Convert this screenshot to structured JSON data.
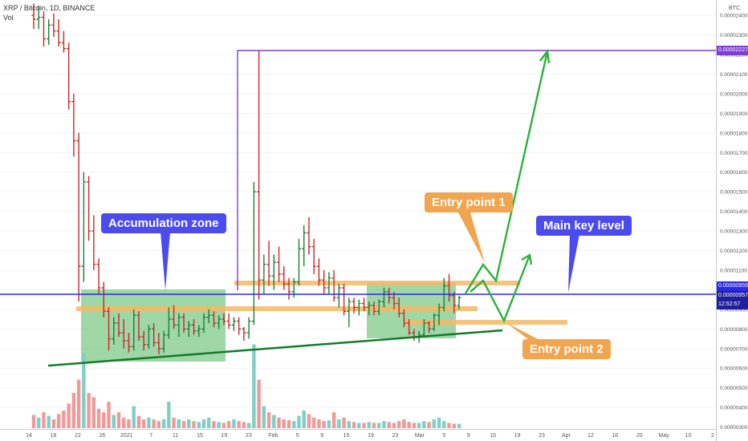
{
  "header": {
    "symbol": "XRP / Bitcoin, 1D, BINANCE",
    "vol_label": "Vol"
  },
  "axis_unit": "BTC",
  "price_tags": {
    "top_level": "0.00002227",
    "key_level": "0.00000959",
    "last": "0.00000957",
    "countdown": "12:52:57"
  },
  "colors": {
    "up": "#1a7f3c",
    "down": "#c62828",
    "vol_up": "#7fcfc4",
    "vol_down": "#ef9a9a",
    "key_level": "#2a2ae6",
    "purple": "#7e3fd6",
    "zone": "#7fc98a",
    "band": "#f5b865",
    "arrow": "#29b33a",
    "trend": "#137a2a"
  },
  "annotations": {
    "accumulation": "Accumulation zone",
    "main_key": "Main key level",
    "entry1": "Entry point 1",
    "entry2": "Entry point 2"
  },
  "chart_data": {
    "type": "candlestick",
    "ylim": [
      2.9e-06,
      2.47e-05
    ],
    "y_ticks": [
      "0.00002400",
      "0.00002300",
      "0.00002200",
      "0.00002100",
      "0.00002000",
      "0.00001900",
      "0.00001800",
      "0.00001700",
      "0.00001600",
      "0.00001500",
      "0.00001400",
      "0.00001300",
      "0.00001200",
      "0.00001100",
      "0.00001000",
      "0.00000900",
      "0.00000800",
      "0.00000700",
      "0.00000600",
      "0.00000500",
      "0.00000400",
      "0.00000300"
    ],
    "x_ticks": [
      "14",
      "18",
      "22",
      "26",
      "2021",
      "7",
      "11",
      "15",
      "19",
      "23",
      "Feb",
      "5",
      "9",
      "15",
      "19",
      "23",
      "Mar",
      "5",
      "9",
      "15",
      "19",
      "23",
      "Apr",
      "12",
      "16",
      "20",
      "May",
      "10",
      "2"
    ],
    "candles": [
      [
        2.4e-05,
        2.46e-05,
        2.33e-05,
        2.38e-05
      ],
      [
        2.38e-05,
        2.45e-05,
        2.33e-05,
        2.39e-05
      ],
      [
        2.39e-05,
        2.42e-05,
        2.24e-05,
        2.28e-05
      ],
      [
        2.28e-05,
        2.38e-05,
        2.25e-05,
        2.35e-05
      ],
      [
        2.35e-05,
        2.41e-05,
        2.29e-05,
        2.32e-05
      ],
      [
        2.32e-05,
        2.38e-05,
        2.24e-05,
        2.26e-05
      ],
      [
        2.26e-05,
        2.32e-05,
        2.21e-05,
        2.23e-05
      ],
      [
        2.23e-05,
        2.26e-05,
        1.92e-05,
        1.96e-05
      ],
      [
        1.96e-05,
        2e-05,
        1.68e-05,
        1.76e-05
      ],
      [
        1.76e-05,
        1.8e-05,
        9.4e-06,
        1.12e-05
      ],
      [
        1.12e-05,
        1.6e-05,
        1.04e-05,
        1.55e-05
      ],
      [
        1.55e-05,
        1.58e-05,
        1.25e-05,
        1.3e-05
      ],
      [
        1.3e-05,
        1.38e-05,
        1.1e-05,
        1.13e-05
      ],
      [
        1.13e-05,
        1.16e-05,
        9.8e-06,
        1.01e-05
      ],
      [
        1.01e-05,
        1.04e-05,
        8.6e-06,
        8.9e-06
      ],
      [
        8.9e-06,
        9.1e-06,
        6.9e-06,
        7.5e-06
      ],
      [
        7.5e-06,
        8.6e-06,
        7.2e-06,
        8.3e-06
      ],
      [
        8.3e-06,
        8.8e-06,
        7.6e-06,
        7.8e-06
      ],
      [
        7.8e-06,
        8.5e-06,
        7e-06,
        7.4e-06
      ],
      [
        7.4e-06,
        7.8e-06,
        6.8e-06,
        7.1e-06
      ],
      [
        7.1e-06,
        9e-06,
        6.9e-06,
        8.7e-06
      ],
      [
        8.7e-06,
        8.9e-06,
        7.4e-06,
        7.6e-06
      ],
      [
        7.6e-06,
        7.9e-06,
        6.9e-06,
        7.2e-06
      ],
      [
        7.2e-06,
        8.2e-06,
        7e-06,
        8e-06
      ],
      [
        8e-06,
        8.3e-06,
        7.1e-06,
        7.3e-06
      ],
      [
        7.3e-06,
        7.8e-06,
        6.7e-06,
        7e-06
      ],
      [
        7e-06,
        7.9e-06,
        6.8e-06,
        7.7e-06
      ],
      [
        7.7e-06,
        9.1e-06,
        7.5e-06,
        8.5e-06
      ],
      [
        8.5e-06,
        9.2e-06,
        8e-06,
        8.2e-06
      ],
      [
        8.2e-06,
        8.8e-06,
        7.6e-06,
        8.6e-06
      ],
      [
        8.6e-06,
        8.8e-06,
        7.8e-06,
        8e-06
      ],
      [
        8e-06,
        8.4e-06,
        7.6e-06,
        8.2e-06
      ],
      [
        8.2e-06,
        8.5e-06,
        7.7e-06,
        7.9e-06
      ],
      [
        7.9e-06,
        8.2e-06,
        7.6e-06,
        8e-06
      ],
      [
        8e-06,
        8.8e-06,
        7.8e-06,
        8.6e-06
      ],
      [
        8.6e-06,
        9e-06,
        8.3e-06,
        8.7e-06
      ],
      [
        8.7e-06,
        8.9e-06,
        8.1e-06,
        8.3e-06
      ],
      [
        8.3e-06,
        8.7e-06,
        8e-06,
        8.5e-06
      ],
      [
        8.5e-06,
        8.8e-06,
        8.2e-06,
        8.4e-06
      ],
      [
        8.4e-06,
        8.8e-06,
        8e-06,
        8.2e-06
      ],
      [
        8.2e-06,
        8.6e-06,
        7.9e-06,
        8.4e-06
      ],
      [
        8.4e-06,
        8.6e-06,
        7.7e-06,
        8e-06
      ],
      [
        8e-06,
        8.1e-06,
        7.4e-06,
        7.8e-06
      ],
      [
        7.8e-06,
        8.6e-06,
        7.5e-06,
        8.4e-06
      ],
      [
        8.4e-06,
        1.55e-05,
        8.2e-06,
        1.5e-05
      ],
      [
        1.5e-05,
        2.22e-05,
        9.5e-06,
        1.05e-05
      ],
      [
        1.05e-05,
        1.18e-05,
        9.8e-06,
        1.13e-05
      ],
      [
        1.13e-05,
        1.25e-05,
        1.02e-05,
        1.07e-05
      ],
      [
        1.07e-05,
        1.18e-05,
        1e-05,
        1.14e-05
      ],
      [
        1.14e-05,
        1.22e-05,
        1.04e-05,
        1.08e-05
      ],
      [
        1.08e-05,
        1.12e-05,
        1e-05,
        1.03e-05
      ],
      [
        1.03e-05,
        1.06e-05,
        9.5e-06,
        9.9e-06
      ],
      [
        9.9e-06,
        1.06e-05,
        9.6e-06,
        1.04e-05
      ],
      [
        1.04e-05,
        1.26e-05,
        1.02e-05,
        1.21e-05
      ],
      [
        1.21e-05,
        1.33e-05,
        1.12e-05,
        1.29e-05
      ],
      [
        1.29e-05,
        1.37e-05,
        1.18e-05,
        1.22e-05
      ],
      [
        1.22e-05,
        1.26e-05,
        1.08e-05,
        1.12e-05
      ],
      [
        1.12e-05,
        1.16e-05,
        1.02e-05,
        1.05e-05
      ],
      [
        1.05e-05,
        1.1e-05,
        9.8e-06,
        1.01e-05
      ],
      [
        1.01e-05,
        1.09e-05,
        9.8e-06,
        1.06e-05
      ],
      [
        1.06e-05,
        1.1e-05,
        9.4e-06,
        9.6e-06
      ],
      [
        9.6e-06,
        1.03e-05,
        9.1e-06,
        1.01e-05
      ],
      [
        1.01e-05,
        1.03e-05,
        8.7e-06,
        8.9e-06
      ],
      [
        8.9e-06,
        9.6e-06,
        8.1e-06,
        9.4e-06
      ],
      [
        9.4e-06,
        9.6e-06,
        8.8e-06,
        9.1e-06
      ],
      [
        9.1e-06,
        9.5e-06,
        8.7e-06,
        9.3e-06
      ],
      [
        9.3e-06,
        9.6e-06,
        8.9e-06,
        9.1e-06
      ],
      [
        9.1e-06,
        9.4e-06,
        8.7e-06,
        9.2e-06
      ],
      [
        9.2e-06,
        9.4e-06,
        8.7e-06,
        8.9e-06
      ],
      [
        8.9e-06,
        9.5e-06,
        8.7e-06,
        9.4e-06
      ],
      [
        9.4e-06,
        1.01e-05,
        9.1e-06,
        9.9e-06
      ],
      [
        9.9e-06,
        1.01e-05,
        9.3e-06,
        9.6e-06
      ],
      [
        9.6e-06,
        9.9e-06,
        9e-06,
        9.3e-06
      ],
      [
        9.3e-06,
        9.6e-06,
        8.6e-06,
        8.8e-06
      ],
      [
        8.8e-06,
        9e-06,
        8.1e-06,
        8.3e-06
      ],
      [
        8.3e-06,
        8.5e-06,
        7.7e-06,
        7.8e-06
      ],
      [
        7.8e-06,
        8e-06,
        7.4e-06,
        7.6e-06
      ],
      [
        7.6e-06,
        7.9e-06,
        7.3e-06,
        7.7e-06
      ],
      [
        7.7e-06,
        8.5e-06,
        7.6e-06,
        8.3e-06
      ],
      [
        8.3e-06,
        8.4e-06,
        7.8e-06,
        8e-06
      ],
      [
        8e-06,
        8.8e-06,
        7.9e-06,
        8.7e-06
      ],
      [
        8.7e-06,
        9.3e-06,
        8.2e-06,
        9.1e-06
      ],
      [
        9.1e-06,
        1.06e-05,
        8.9e-06,
        1.02e-05
      ],
      [
        1.02e-05,
        1.08e-05,
        9.4e-06,
        9.7e-06
      ],
      [
        9.7e-06,
        9.9e-06,
        8.8e-06,
        9.2e-06
      ],
      [
        9.2e-06,
        9.7e-06,
        9e-06,
        9.6e-06
      ]
    ],
    "volume_ylim": [
      0,
      1
    ],
    "volumes": [
      0.15,
      0.12,
      0.18,
      0.14,
      0.1,
      0.16,
      0.2,
      0.28,
      0.4,
      0.55,
      0.85,
      0.4,
      0.35,
      0.22,
      0.18,
      0.3,
      0.15,
      0.18,
      0.12,
      0.1,
      0.25,
      0.14,
      0.1,
      0.12,
      0.1,
      0.08,
      0.1,
      0.3,
      0.12,
      0.1,
      0.08,
      0.1,
      0.08,
      0.07,
      0.1,
      0.12,
      0.08,
      0.07,
      0.06,
      0.08,
      0.1,
      0.08,
      0.07,
      0.06,
      0.95,
      0.55,
      0.25,
      0.18,
      0.15,
      0.12,
      0.1,
      0.09,
      0.08,
      0.14,
      0.2,
      0.16,
      0.12,
      0.1,
      0.08,
      0.09,
      0.18,
      0.1,
      0.12,
      0.08,
      0.07,
      0.06,
      0.06,
      0.07,
      0.06,
      0.06,
      0.08,
      0.07,
      0.06,
      0.08,
      0.1,
      0.07,
      0.06,
      0.06,
      0.08,
      0.07,
      0.1,
      0.12,
      0.08,
      0.06,
      0.05,
      0.05
    ]
  }
}
